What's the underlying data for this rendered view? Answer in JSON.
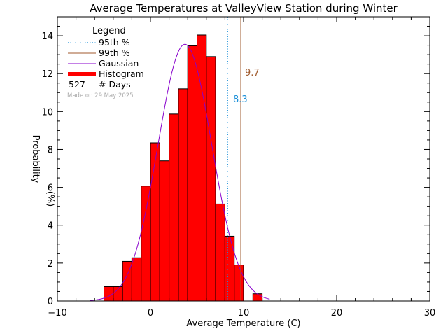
{
  "chart_data": {
    "type": "bar",
    "title": "Average Temperatures at ValleyView Station during Winter",
    "xlabel": "Average Temperature (C)",
    "ylabel_line1": "Probability",
    "ylabel_line2": "(%)",
    "xlim": [
      -10,
      30
    ],
    "ylim": [
      0,
      15
    ],
    "xticks": [
      -10,
      0,
      10,
      20,
      30
    ],
    "yticks": [
      0,
      2,
      4,
      6,
      8,
      10,
      12,
      14
    ],
    "bin_width": 1,
    "bins": [
      {
        "x0": -5,
        "x1": -4,
        "value": 0.76
      },
      {
        "x0": -4,
        "x1": -3,
        "value": 0.76
      },
      {
        "x0": -3,
        "x1": -2,
        "value": 2.09
      },
      {
        "x0": -2,
        "x1": -1,
        "value": 2.28
      },
      {
        "x0": -1,
        "x1": 0,
        "value": 6.07
      },
      {
        "x0": 0,
        "x1": 1,
        "value": 8.35
      },
      {
        "x0": 1,
        "x1": 2,
        "value": 7.4
      },
      {
        "x0": 2,
        "x1": 3,
        "value": 9.87
      },
      {
        "x0": 3,
        "x1": 4,
        "value": 11.2
      },
      {
        "x0": 4,
        "x1": 5,
        "value": 13.47
      },
      {
        "x0": 5,
        "x1": 6,
        "value": 14.04
      },
      {
        "x0": 6,
        "x1": 7,
        "value": 12.9
      },
      {
        "x0": 7,
        "x1": 8,
        "value": 5.12
      },
      {
        "x0": 8,
        "x1": 9,
        "value": 3.42
      },
      {
        "x0": 9,
        "x1": 10,
        "value": 1.9
      },
      {
        "x0": 10,
        "x1": 11,
        "value": 0
      },
      {
        "x0": 11,
        "x1": 12,
        "value": 0.38
      }
    ],
    "gaussian": {
      "mean": 3.7,
      "sd": 2.9,
      "peak": 13.55,
      "x_range": [
        -6.5,
        12.8
      ]
    },
    "percentile_95": {
      "value": 8.3,
      "label": "8.3"
    },
    "percentile_99": {
      "value": 9.7,
      "label": "9.7"
    },
    "legend": {
      "title": "Legend",
      "placement": "top-left",
      "entries": [
        {
          "label": "95th %",
          "style": "dotted",
          "color": "#1a8fd8"
        },
        {
          "label": "99th %",
          "style": "solid",
          "color": "#a05a2c"
        },
        {
          "label": "Gaussian",
          "style": "solid",
          "color": "#8800cc"
        },
        {
          "label": "Histogram",
          "style": "thick",
          "color": "#ff0000"
        }
      ],
      "count_value": "527",
      "count_label": "# Days",
      "made_on": "Made on 29 May 2025"
    },
    "colors": {
      "bars": "#ff0000",
      "bar_outline": "#000000",
      "gaussian": "#8800cc",
      "p95": "#1a8fd8",
      "p99": "#a05a2c",
      "made_on": "#aaaaaa"
    }
  }
}
